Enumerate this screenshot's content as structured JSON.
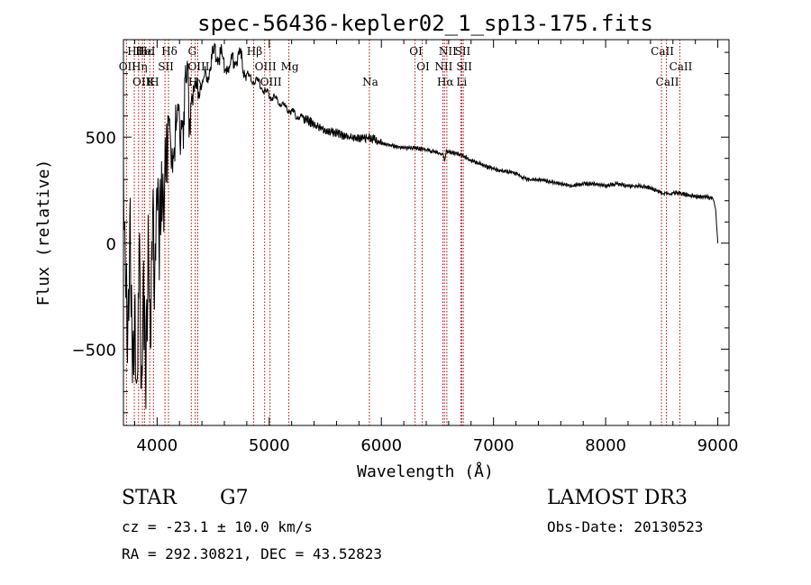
{
  "chart_data": {
    "type": "line",
    "title": "spec-56436-kepler02_1_sp13-175.fits",
    "xlabel": "Wavelength (Å)",
    "ylabel": "Flux (relative)",
    "xlim": [
      3700,
      9100
    ],
    "ylim": [
      -860,
      960
    ],
    "xticks": [
      4000,
      5000,
      6000,
      7000,
      8000,
      9000
    ],
    "yticks": [
      -500,
      0,
      500
    ],
    "series": [
      {
        "name": "flux",
        "x": [
          3700,
          3720,
          3740,
          3760,
          3780,
          3800,
          3820,
          3840,
          3860,
          3880,
          3900,
          3920,
          3940,
          3960,
          3980,
          4000,
          4020,
          4040,
          4060,
          4080,
          4100,
          4150,
          4200,
          4250,
          4300,
          4350,
          4400,
          4450,
          4500,
          4550,
          4600,
          4650,
          4700,
          4750,
          4800,
          4850,
          4900,
          4950,
          5000,
          5050,
          5100,
          5150,
          5200,
          5250,
          5300,
          5400,
          5500,
          5600,
          5700,
          5800,
          5900,
          6000,
          6100,
          6200,
          6300,
          6400,
          6500,
          6550,
          6563,
          6580,
          6600,
          6700,
          6800,
          6900,
          7000,
          7100,
          7200,
          7300,
          7400,
          7500,
          7600,
          7700,
          7800,
          7900,
          8000,
          8100,
          8200,
          8300,
          8400,
          8500,
          8550,
          8600,
          8700,
          8800,
          8900,
          8960,
          8980,
          9000
        ],
        "y": [
          250,
          -150,
          -500,
          100,
          -620,
          -300,
          -760,
          50,
          -700,
          -250,
          -600,
          -50,
          -400,
          150,
          -200,
          300,
          0,
          350,
          100,
          450,
          400,
          500,
          560,
          650,
          700,
          720,
          760,
          790,
          880,
          900,
          860,
          820,
          880,
          860,
          800,
          770,
          760,
          720,
          700,
          680,
          660,
          640,
          620,
          600,
          590,
          560,
          530,
          520,
          500,
          490,
          500,
          470,
          460,
          450,
          450,
          440,
          430,
          420,
          380,
          440,
          430,
          420,
          390,
          370,
          350,
          340,
          330,
          300,
          300,
          290,
          280,
          270,
          280,
          280,
          270,
          280,
          270,
          270,
          260,
          240,
          230,
          240,
          230,
          220,
          220,
          210,
          160,
          0
        ]
      }
    ],
    "emission_lines": [
      {
        "label": "Hθ",
        "wavelength": 3797
      },
      {
        "label": "OII",
        "wavelength": 3727
      },
      {
        "label": "OIII",
        "wavelength": 3869
      },
      {
        "label": "Hε",
        "wavelength": 3889
      },
      {
        "label": "Hη",
        "wavelength": 3835
      },
      {
        "label": "K",
        "wavelength": 3934
      },
      {
        "label": "HeI",
        "wavelength": 3888
      },
      {
        "label": "SII",
        "wavelength": 4070
      },
      {
        "label": "H",
        "wavelength": 3968
      },
      {
        "label": "Hδ",
        "wavelength": 4102
      },
      {
        "label": "OIII",
        "wavelength": 4363
      },
      {
        "label": "Hγ",
        "wavelength": 4340
      },
      {
        "label": "G",
        "wavelength": 4305
      },
      {
        "label": "OIII",
        "wavelength": 4959
      },
      {
        "label": "OIII",
        "wavelength": 5007
      },
      {
        "label": "Hβ",
        "wavelength": 4861
      },
      {
        "label": "Mg",
        "wavelength": 5175
      },
      {
        "label": "Na",
        "wavelength": 5893
      },
      {
        "label": "OI",
        "wavelength": 6300
      },
      {
        "label": "OI",
        "wavelength": 6364
      },
      {
        "label": "Hα",
        "wavelength": 6563
      },
      {
        "label": "SII",
        "wavelength": 6717
      },
      {
        "label": "NII",
        "wavelength": 6548
      },
      {
        "label": "Li",
        "wavelength": 6708
      },
      {
        "label": "NII",
        "wavelength": 6584
      },
      {
        "label": "SII",
        "wavelength": 6731
      },
      {
        "label": "CaII",
        "wavelength": 8542
      },
      {
        "label": "CaII",
        "wavelength": 8498
      },
      {
        "label": "CaII",
        "wavelength": 8662
      }
    ]
  },
  "info": {
    "object_class": "STAR",
    "subclass": "G7",
    "survey": "LAMOST DR3",
    "redshift_text": "cz = -23.1 ± 10.0 km/s",
    "obs_date_text": "Obs-Date: 20130523",
    "coords_text": "RA = 292.30821, DEC =  43.52823"
  }
}
